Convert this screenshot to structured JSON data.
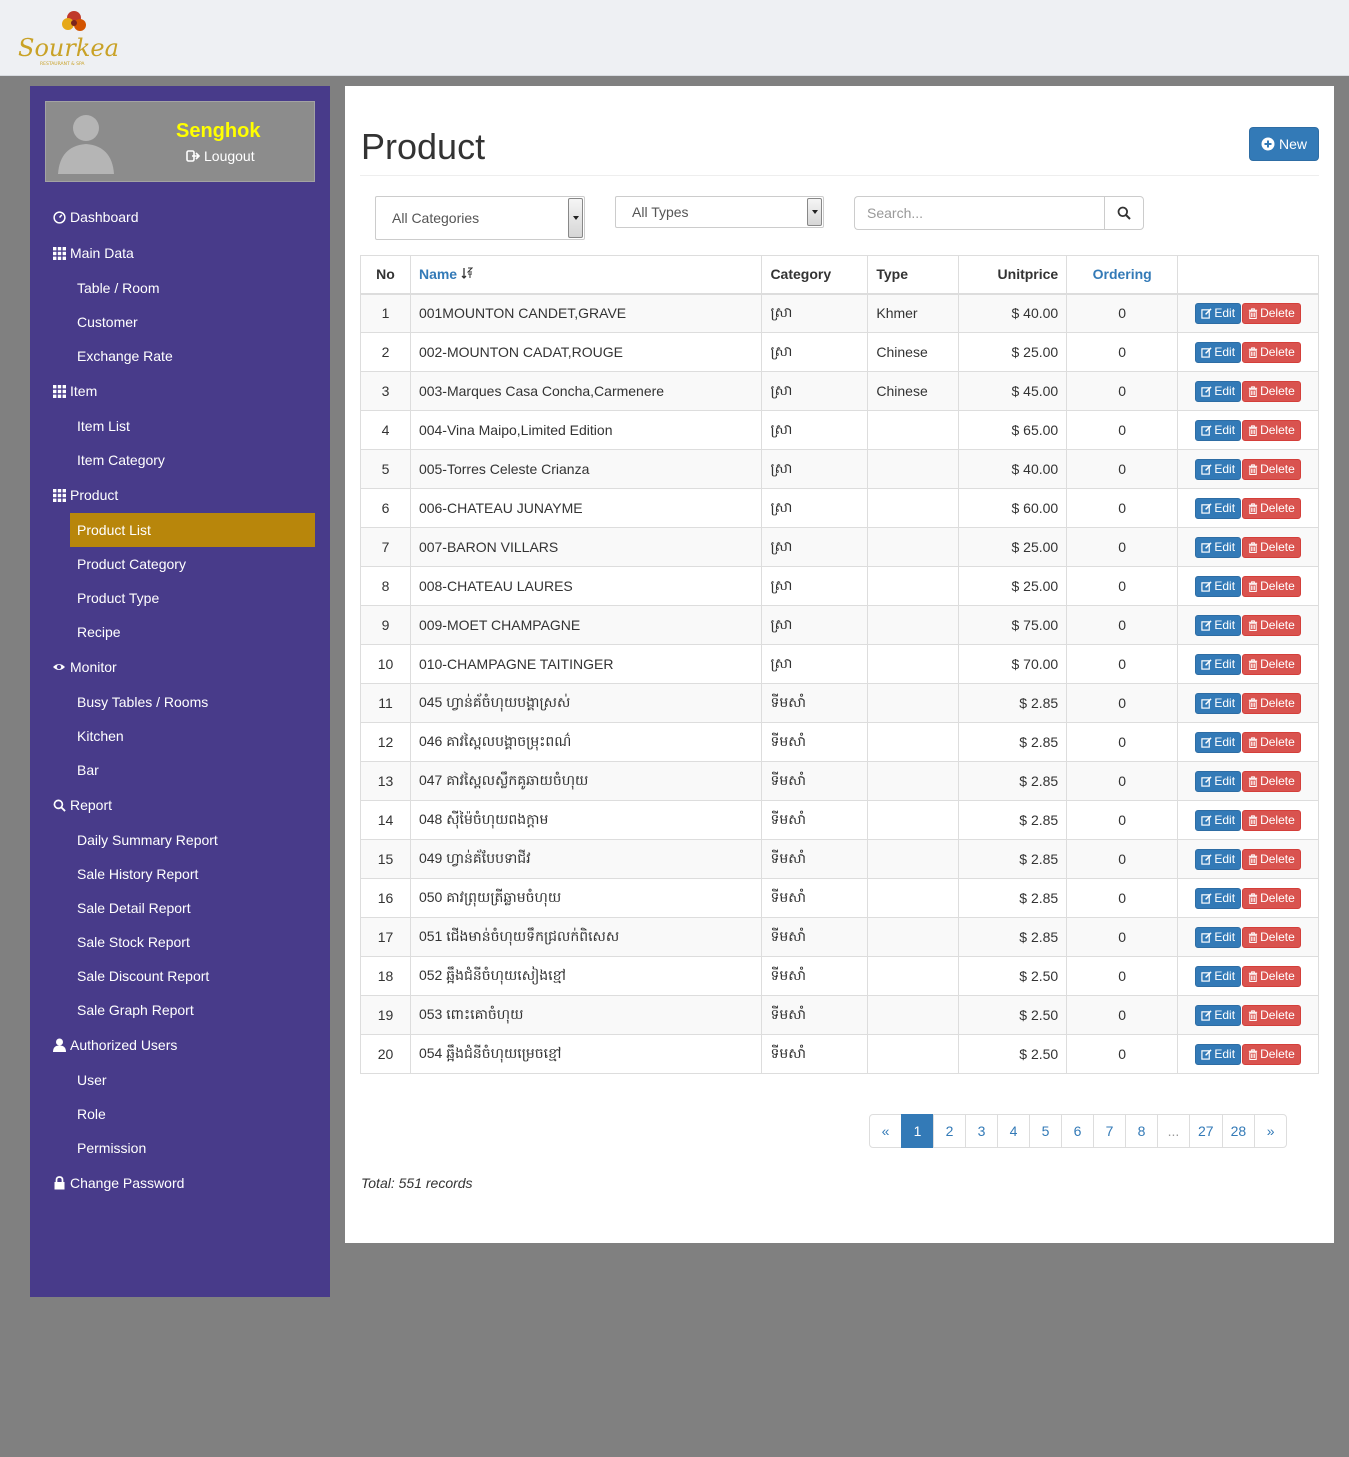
{
  "brand": {
    "name": "Sourkea",
    "tagline": "RESTAURANT & SPA"
  },
  "user": {
    "name": "Senghok",
    "logout_label": "Lougout"
  },
  "sidebar": {
    "items": [
      {
        "label": "Dashboard",
        "type": "head",
        "icon": "dashboard-icon"
      },
      {
        "label": "Main Data",
        "type": "head",
        "icon": "grid-icon"
      },
      {
        "label": "Table / Room",
        "type": "sub"
      },
      {
        "label": "Customer",
        "type": "sub"
      },
      {
        "label": "Exchange Rate",
        "type": "sub"
      },
      {
        "label": "Item",
        "type": "head",
        "icon": "grid-icon"
      },
      {
        "label": "Item List",
        "type": "sub"
      },
      {
        "label": "Item Category",
        "type": "sub"
      },
      {
        "label": "Product",
        "type": "head",
        "icon": "grid-icon"
      },
      {
        "label": "Product List",
        "type": "sub",
        "active": true
      },
      {
        "label": "Product Category",
        "type": "sub"
      },
      {
        "label": "Product Type",
        "type": "sub"
      },
      {
        "label": "Recipe",
        "type": "sub"
      },
      {
        "label": "Monitor",
        "type": "head",
        "icon": "eye-icon"
      },
      {
        "label": "Busy Tables / Rooms",
        "type": "sub"
      },
      {
        "label": "Kitchen",
        "type": "sub"
      },
      {
        "label": "Bar",
        "type": "sub"
      },
      {
        "label": "Report",
        "type": "head",
        "icon": "search-icon"
      },
      {
        "label": "Daily Summary Report",
        "type": "sub"
      },
      {
        "label": "Sale History Report",
        "type": "sub"
      },
      {
        "label": "Sale Detail Report",
        "type": "sub"
      },
      {
        "label": "Sale Stock Report",
        "type": "sub"
      },
      {
        "label": "Sale Discount Report",
        "type": "sub"
      },
      {
        "label": "Sale Graph Report",
        "type": "sub"
      },
      {
        "label": "Authorized Users",
        "type": "head",
        "icon": "user-icon"
      },
      {
        "label": "User",
        "type": "sub"
      },
      {
        "label": "Role",
        "type": "sub"
      },
      {
        "label": "Permission",
        "type": "sub"
      },
      {
        "label": "Change Password",
        "type": "head",
        "icon": "lock-icon"
      }
    ]
  },
  "main": {
    "title": "Product",
    "new_label": "New",
    "filters": {
      "category": "All Categories",
      "type": "All Types",
      "search_placeholder": "Search..."
    },
    "table": {
      "headers": {
        "no": "No",
        "name": "Name",
        "category": "Category",
        "type": "Type",
        "unitprice": "Unitprice",
        "ordering": "Ordering"
      },
      "edit_label": "Edit",
      "delete_label": "Delete",
      "rows": [
        {
          "no": "1",
          "name": "001MOUNTON CANDET,GRAVE",
          "category": "ស្រា",
          "type": "Khmer",
          "price": "$ 40.00",
          "ordering": "0"
        },
        {
          "no": "2",
          "name": "002-MOUNTON CADAT,ROUGE",
          "category": "ស្រា",
          "type": "Chinese",
          "price": "$ 25.00",
          "ordering": "0"
        },
        {
          "no": "3",
          "name": "003-Marques Casa Concha,Carmenere",
          "category": "ស្រា",
          "type": "Chinese",
          "price": "$ 45.00",
          "ordering": "0"
        },
        {
          "no": "4",
          "name": "004-Vina Maipo,Limited Edition",
          "category": "ស្រា",
          "type": "",
          "price": "$ 65.00",
          "ordering": "0"
        },
        {
          "no": "5",
          "name": "005-Torres Celeste Crianza",
          "category": "ស្រា",
          "type": "",
          "price": "$ 40.00",
          "ordering": "0"
        },
        {
          "no": "6",
          "name": "006-CHATEAU JUNAYME",
          "category": "ស្រា",
          "type": "",
          "price": "$ 60.00",
          "ordering": "0"
        },
        {
          "no": "7",
          "name": "007-BARON VILLARS",
          "category": "ស្រា",
          "type": "",
          "price": "$ 25.00",
          "ordering": "0"
        },
        {
          "no": "8",
          "name": "008-CHATEAU LAURES",
          "category": "ស្រា",
          "type": "",
          "price": "$ 25.00",
          "ordering": "0"
        },
        {
          "no": "9",
          "name": "009-MOET CHAMPAGNE",
          "category": "ស្រា",
          "type": "",
          "price": "$ 75.00",
          "ordering": "0"
        },
        {
          "no": "10",
          "name": "010-CHAMPAGNE TAITINGER",
          "category": "ស្រា",
          "type": "",
          "price": "$ 70.00",
          "ordering": "0"
        },
        {
          "no": "11",
          "name": "045 ហ្វាន់គ័ចំហុយបង្គាស្រស់",
          "category": "ទីមសាំ",
          "type": "",
          "price": "$ 2.85",
          "ordering": "0"
        },
        {
          "no": "12",
          "name": "046 គាវស្ពៃលបង្គាចម្រុះពណ៌",
          "category": "ទីមសាំ",
          "type": "",
          "price": "$ 2.85",
          "ordering": "0"
        },
        {
          "no": "13",
          "name": "047 គាវស្ពៃលស្លឹកគូឆាយចំហុយ",
          "category": "ទីមសាំ",
          "type": "",
          "price": "$ 2.85",
          "ordering": "0"
        },
        {
          "no": "14",
          "name": "048 ស៊ីម៉ៃចំហុយពងក្តាម",
          "category": "ទីមសាំ",
          "type": "",
          "price": "$ 2.85",
          "ordering": "0"
        },
        {
          "no": "15",
          "name": "049 ហ្វាន់គ័បែបទាជីវ",
          "category": "ទីមសាំ",
          "type": "",
          "price": "$ 2.85",
          "ordering": "0"
        },
        {
          "no": "16",
          "name": "050 គាវព្រុយត្រីឆ្លាមចំហុយ",
          "category": "ទីមសាំ",
          "type": "",
          "price": "$ 2.85",
          "ordering": "0"
        },
        {
          "no": "17",
          "name": "051 ជើងមាន់ចំហុយទឹកជ្រលក់ពិសេស",
          "category": "ទីមសាំ",
          "type": "",
          "price": "$ 2.85",
          "ordering": "0"
        },
        {
          "no": "18",
          "name": "052 ឆ្អឹងជំនីចំហុយសៀងខ្មៅ",
          "category": "ទីមសាំ",
          "type": "",
          "price": "$ 2.50",
          "ordering": "0"
        },
        {
          "no": "19",
          "name": "053 ពោះគោចំហុយ",
          "category": "ទីមសាំ",
          "type": "",
          "price": "$ 2.50",
          "ordering": "0"
        },
        {
          "no": "20",
          "name": "054 ឆ្អឹងជំនីចំហុយម្រេចខ្មៅ",
          "category": "ទីមសាំ",
          "type": "",
          "price": "$ 2.50",
          "ordering": "0"
        }
      ]
    },
    "pagination": [
      "«",
      "1",
      "2",
      "3",
      "4",
      "5",
      "6",
      "7",
      "8",
      "...",
      "27",
      "28",
      "»"
    ],
    "pagination_active": "1",
    "total_text": "Total: 551 records"
  },
  "colors": {
    "sidebar_bg": "#483b8a",
    "active_item": "#b8860b",
    "primary": "#337ab7",
    "danger": "#d9534f",
    "username": "#ffff00"
  }
}
